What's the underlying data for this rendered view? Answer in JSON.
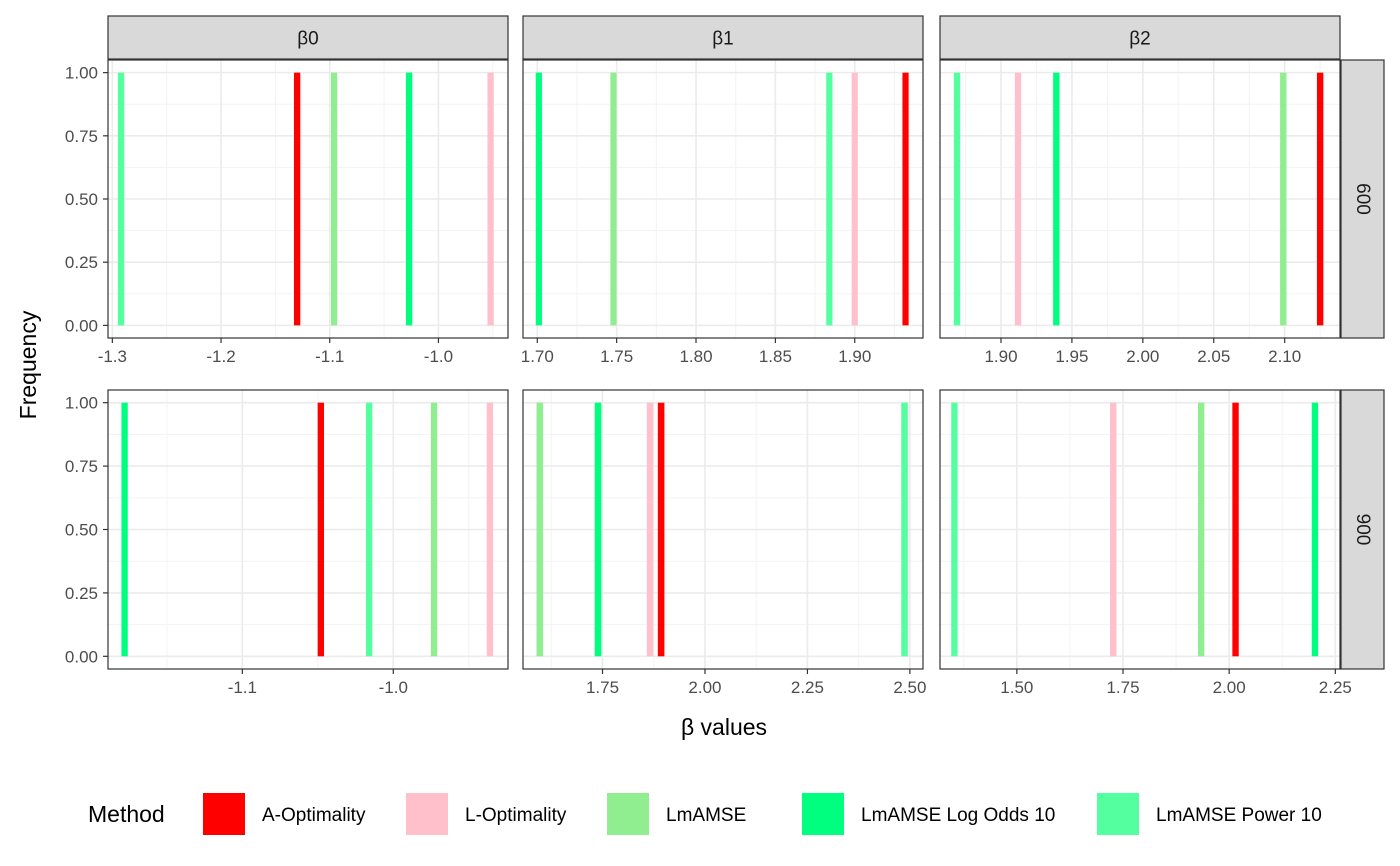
{
  "chart_data": {
    "type": "bar",
    "xlabel": "β values",
    "ylabel": "Frequency",
    "legend": {
      "title": "Method",
      "position": "bottom",
      "entries": [
        {
          "name": "A-Optimality",
          "color": "#FF0000"
        },
        {
          "name": "L-Optimality",
          "color": "#FFC0CB"
        },
        {
          "name": "LmAMSE",
          "color": "#90EE90"
        },
        {
          "name": "LmAMSE Log Odds 10",
          "color": "#00FF7F"
        },
        {
          "name": "LmAMSE Power 10",
          "color": "#54FF9F"
        }
      ]
    },
    "columns": [
      "β0",
      "β1",
      "β2"
    ],
    "rows": [
      "600",
      "900"
    ],
    "y_ticks": [
      0,
      0.25,
      0.5,
      0.75,
      1
    ],
    "y_tick_labels": [
      "0.00",
      "0.25",
      "0.50",
      "0.75",
      "1.00"
    ],
    "ylim": [
      -0.05,
      1.05
    ],
    "grid": true,
    "panels": [
      {
        "row": "600",
        "column": "β0",
        "xlim": [
          -1.304,
          -0.936
        ],
        "x_ticks": [
          -1.3,
          -1.2,
          -1.1,
          -1.0
        ],
        "x_tick_labels": [
          "-1.3",
          "-1.2",
          "-1.1",
          "-1.0"
        ],
        "bar_width": 0.0058,
        "bars": [
          {
            "method": "LmAMSE Power 10",
            "x": -1.292,
            "value": 1
          },
          {
            "method": "A-Optimality",
            "x": -1.13,
            "value": 1
          },
          {
            "method": "LmAMSE",
            "x": -1.096,
            "value": 1
          },
          {
            "method": "LmAMSE Log Odds 10",
            "x": -1.027,
            "value": 1
          },
          {
            "method": "L-Optimality",
            "x": -0.952,
            "value": 1
          }
        ]
      },
      {
        "row": "600",
        "column": "β1",
        "xlim": [
          1.691,
          1.943
        ],
        "x_ticks": [
          1.7,
          1.75,
          1.8,
          1.85,
          1.9
        ],
        "x_tick_labels": [
          "1.70",
          "1.75",
          "1.80",
          "1.85",
          "1.90"
        ],
        "bar_width": 0.0039,
        "bars": [
          {
            "method": "LmAMSE Log Odds 10",
            "x": 1.701,
            "value": 1
          },
          {
            "method": "LmAMSE",
            "x": 1.748,
            "value": 1
          },
          {
            "method": "LmAMSE Power 10",
            "x": 1.884,
            "value": 1
          },
          {
            "method": "L-Optimality",
            "x": 1.9,
            "value": 1
          },
          {
            "method": "A-Optimality",
            "x": 1.932,
            "value": 1
          }
        ]
      },
      {
        "row": "600",
        "column": "β2",
        "xlim": [
          1.857,
          2.139
        ],
        "x_ticks": [
          1.9,
          1.95,
          2.0,
          2.05,
          2.1
        ],
        "x_tick_labels": [
          "1.90",
          "1.95",
          "2.00",
          "2.05",
          "2.10"
        ],
        "bar_width": 0.0045,
        "bars": [
          {
            "method": "LmAMSE Power 10",
            "x": 1.869,
            "value": 1
          },
          {
            "method": "L-Optimality",
            "x": 1.912,
            "value": 1
          },
          {
            "method": "LmAMSE Log Odds 10",
            "x": 1.939,
            "value": 1
          },
          {
            "method": "LmAMSE",
            "x": 2.099,
            "value": 1
          },
          {
            "method": "A-Optimality",
            "x": 2.125,
            "value": 1
          }
        ]
      },
      {
        "row": "900",
        "column": "β0",
        "xlim": [
          -1.189,
          -0.924
        ],
        "x_ticks": [
          -1.1,
          -1.0
        ],
        "x_tick_labels": [
          "-1.1",
          "-1.0"
        ],
        "bar_width": 0.0042,
        "bars": [
          {
            "method": "LmAMSE Log Odds 10",
            "x": -1.178,
            "value": 1
          },
          {
            "method": "A-Optimality",
            "x": -1.048,
            "value": 1
          },
          {
            "method": "LmAMSE Power 10",
            "x": -1.016,
            "value": 1
          },
          {
            "method": "LmAMSE",
            "x": -0.973,
            "value": 1
          },
          {
            "method": "L-Optimality",
            "x": -0.936,
            "value": 1
          }
        ]
      },
      {
        "row": "900",
        "column": "β1",
        "xlim": [
          1.556,
          2.532
        ],
        "x_ticks": [
          1.75,
          2.0,
          2.25,
          2.5
        ],
        "x_tick_labels": [
          "1.75",
          "2.00",
          "2.25",
          "2.50"
        ],
        "bar_width": 0.016,
        "bars": [
          {
            "method": "LmAMSE",
            "x": 1.597,
            "value": 1
          },
          {
            "method": "LmAMSE Log Odds 10",
            "x": 1.739,
            "value": 1
          },
          {
            "method": "L-Optimality",
            "x": 1.866,
            "value": 1
          },
          {
            "method": "A-Optimality",
            "x": 1.893,
            "value": 1
          },
          {
            "method": "LmAMSE Power 10",
            "x": 2.487,
            "value": 1
          }
        ]
      },
      {
        "row": "900",
        "column": "β2",
        "xlim": [
          1.319,
          2.261
        ],
        "x_ticks": [
          1.5,
          1.75,
          2.0,
          2.25
        ],
        "x_tick_labels": [
          "1.50",
          "1.75",
          "2.00",
          "2.25"
        ],
        "bar_width": 0.015,
        "bars": [
          {
            "method": "LmAMSE Power 10",
            "x": 1.353,
            "value": 1
          },
          {
            "method": "L-Optimality",
            "x": 1.727,
            "value": 1
          },
          {
            "method": "LmAMSE",
            "x": 1.934,
            "value": 1
          },
          {
            "method": "A-Optimality",
            "x": 2.015,
            "value": 1
          },
          {
            "method": "LmAMSE Log Odds 10",
            "x": 2.202,
            "value": 1
          }
        ]
      }
    ]
  }
}
